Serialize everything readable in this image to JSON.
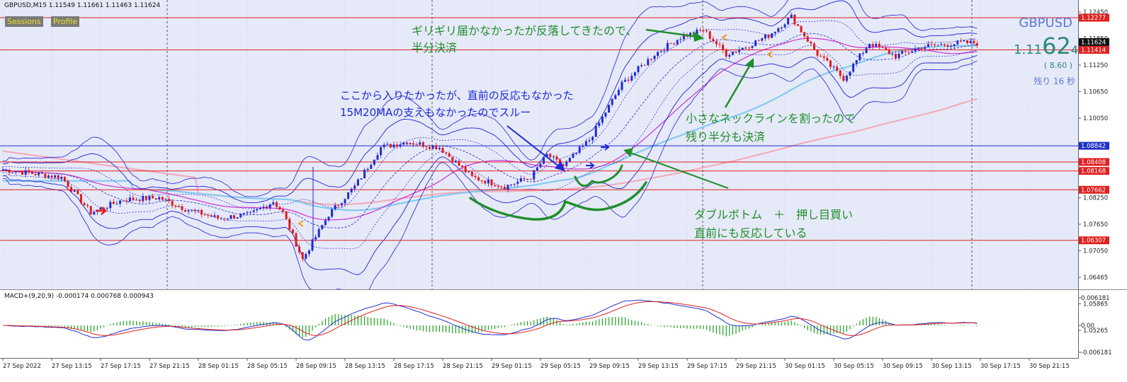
{
  "header": {
    "title": "GBPUSD,M15  1.11549 1.11661 1.11463 1.11624",
    "buttons": [
      "Sessions",
      "Profile"
    ]
  },
  "ticker": {
    "symbol": "GBPUSD",
    "price_prefix": "1.11",
    "price_big": "62",
    "price_suffix": "4",
    "spread": "( 8.60 )",
    "remaining": "残り 16 秒"
  },
  "colors": {
    "background": "#e6e9f8",
    "candle_up": "#1f2bd6",
    "candle_down": "#e01818",
    "bollinger": "#2020d0",
    "ma_magenta": "#d030d0",
    "ma_skyblue": "#7cc8f0",
    "ma_pink": "#f4a8b8",
    "hline_red": "#e02020",
    "hline_blue": "#2030c8",
    "annotation_green": "#1f8f2a",
    "annotation_blue": "#1a2ad8",
    "macd_line": "#2030d0",
    "signal_line": "#e02020",
    "histogram": "#20a020"
  },
  "price_axis": {
    "ticks": [
      "1.12450",
      "1.11850",
      "1.11250",
      "1.10650",
      "1.10050",
      "1.09450",
      "1.08850",
      "1.08250",
      "1.07650",
      "1.07050",
      "1.06465",
      "1.05865",
      "1.05265"
    ],
    "labels": [
      {
        "value": 1.12277,
        "text": "1.12277",
        "bg": "#e02020"
      },
      {
        "value": 1.11624,
        "text": "1.11624",
        "bg": "#111111"
      },
      {
        "value": 1.11414,
        "text": "1.11414",
        "bg": "#e02020"
      },
      {
        "value": 1.08842,
        "text": "1.08842",
        "bg": "#2030c8"
      },
      {
        "value": 1.08408,
        "text": "1.08408",
        "bg": "#e02020"
      },
      {
        "value": 1.08168,
        "text": "1.08168",
        "bg": "#e02020"
      },
      {
        "value": 1.07662,
        "text": "1.07662",
        "bg": "#e02020"
      },
      {
        "value": 1.06307,
        "text": "1.06307",
        "bg": "#e02020"
      }
    ]
  },
  "time_axis": [
    "27 Sep 2022",
    "27 Sep 13:15",
    "27 Sep 17:15",
    "27 Sep 21:15",
    "28 Sep 01:15",
    "28 Sep 05:15",
    "28 Sep 09:15",
    "28 Sep 13:15",
    "28 Sep 17:15",
    "28 Sep 21:15",
    "29 Sep 01:15",
    "29 Sep 05:15",
    "29 Sep 09:15",
    "29 Sep 13:15",
    "29 Sep 17:15",
    "29 Sep 21:15",
    "30 Sep 01:15",
    "30 Sep 05:15",
    "30 Sep 09:15",
    "30 Sep 13:15",
    "30 Sep 17:15",
    "30 Sep 21:15"
  ],
  "annotations": {
    "a1_line1": "ギリギリ届かなかったが反落してきたので、",
    "a1_line2": "半分決済",
    "a2_line1": "ここから入りたかったが、直前の反応もなかった",
    "a2_line2": "15M20MAの支えもなかったのでスルー",
    "a3_line1": "小さなネックラインを割ったので",
    "a3_line2": "残り半分も決済",
    "a4_line1": "ダブルボトム　＋　押し目買い",
    "a4_line2": "直前にも反応している"
  },
  "macd": {
    "label": "MACD+(9,20,9) -0.000174 0.000768 0.000943",
    "ticks": [
      "0.006181",
      "0.00",
      "-0.006181"
    ]
  },
  "chart_data": {
    "type": "candlestick",
    "symbol": "GBPUSD",
    "timeframe": "M15",
    "ylim": [
      1.0505,
      1.126
    ],
    "horizontal_levels": [
      {
        "value": 1.12277,
        "color": "red"
      },
      {
        "value": 1.11414,
        "color": "red"
      },
      {
        "value": 1.08842,
        "color": "blue"
      },
      {
        "value": 1.08408,
        "color": "red"
      },
      {
        "value": 1.08168,
        "color": "red"
      },
      {
        "value": 1.07662,
        "color": "red"
      },
      {
        "value": 1.06307,
        "color": "red"
      }
    ],
    "key_points": [
      {
        "x": 0,
        "y": 1.082
      },
      {
        "x": 18,
        "y": 1.08
      },
      {
        "x": 27,
        "y": 1.0705
      },
      {
        "x": 37,
        "y": 1.074
      },
      {
        "x": 48,
        "y": 1.0745
      },
      {
        "x": 56,
        "y": 1.0715
      },
      {
        "x": 66,
        "y": 1.069
      },
      {
        "x": 76,
        "y": 1.07
      },
      {
        "x": 83,
        "y": 1.0735
      },
      {
        "x": 86,
        "y": 1.0705
      },
      {
        "x": 92,
        "y": 1.058
      },
      {
        "x": 100,
        "y": 1.07
      },
      {
        "x": 108,
        "y": 1.0775
      },
      {
        "x": 116,
        "y": 1.088
      },
      {
        "x": 124,
        "y": 1.0895
      },
      {
        "x": 134,
        "y": 1.088
      },
      {
        "x": 144,
        "y": 1.08
      },
      {
        "x": 154,
        "y": 1.0775
      },
      {
        "x": 162,
        "y": 1.08
      },
      {
        "x": 167,
        "y": 1.086
      },
      {
        "x": 172,
        "y": 1.083
      },
      {
        "x": 180,
        "y": 1.09
      },
      {
        "x": 190,
        "y": 1.105
      },
      {
        "x": 200,
        "y": 1.113
      },
      {
        "x": 208,
        "y": 1.1175
      },
      {
        "x": 215,
        "y": 1.1195
      },
      {
        "x": 222,
        "y": 1.113
      },
      {
        "x": 228,
        "y": 1.115
      },
      {
        "x": 235,
        "y": 1.118
      },
      {
        "x": 242,
        "y": 1.123
      },
      {
        "x": 250,
        "y": 1.113
      },
      {
        "x": 258,
        "y": 1.1065
      },
      {
        "x": 266,
        "y": 1.116
      },
      {
        "x": 274,
        "y": 1.1125
      },
      {
        "x": 282,
        "y": 1.115
      },
      {
        "x": 294,
        "y": 1.116
      }
    ]
  }
}
